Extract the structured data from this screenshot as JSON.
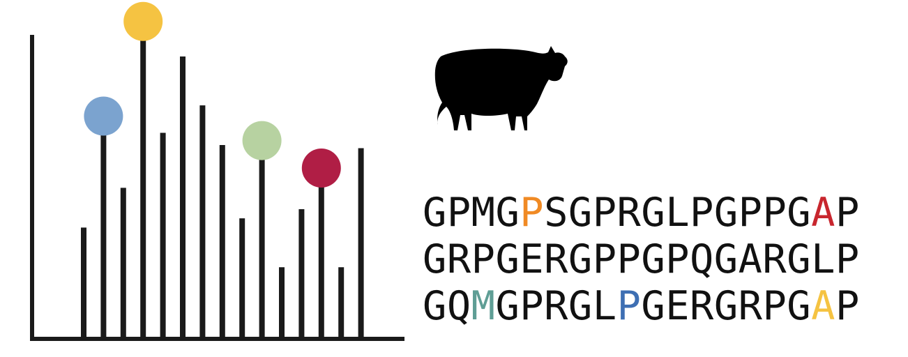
{
  "spectrum": {
    "axis_color": "#1a1a1a",
    "peak_color": "#1a1a1a",
    "peaks": [
      {
        "height": 0.36
      },
      {
        "height": 0.67,
        "marker_color": "#7BA3CF"
      },
      {
        "height": 0.49
      },
      {
        "height": 0.98,
        "marker_color": "#F5C342"
      },
      {
        "height": 0.67
      },
      {
        "height": 0.92
      },
      {
        "height": 0.76
      },
      {
        "height": 0.63
      },
      {
        "height": 0.39
      },
      {
        "height": 0.59,
        "marker_color": "#B7D2A1"
      },
      {
        "height": 0.23
      },
      {
        "height": 0.42
      },
      {
        "height": 0.5,
        "marker_color": "#B01E45"
      },
      {
        "height": 0.23
      },
      {
        "height": 0.62
      }
    ]
  },
  "organism": {
    "icon": "cow-icon",
    "color": "#000000"
  },
  "sequence": {
    "lines": [
      [
        {
          "text": "GPMG"
        },
        {
          "text": "P",
          "color": "#F08A24"
        },
        {
          "text": "SGPRGLPGPPG"
        },
        {
          "text": "A",
          "color": "#C8262E"
        },
        {
          "text": "P"
        }
      ],
      [
        {
          "text": "GRPGERGPPGPQGARGLP"
        }
      ],
      [
        {
          "text": "GQ"
        },
        {
          "text": "M",
          "color": "#5F9E95"
        },
        {
          "text": "GPRGL"
        },
        {
          "text": "P",
          "color": "#3E6FB3"
        },
        {
          "text": "GERGRPG"
        },
        {
          "text": "A",
          "color": "#F5C342"
        },
        {
          "text": "P"
        }
      ]
    ]
  }
}
